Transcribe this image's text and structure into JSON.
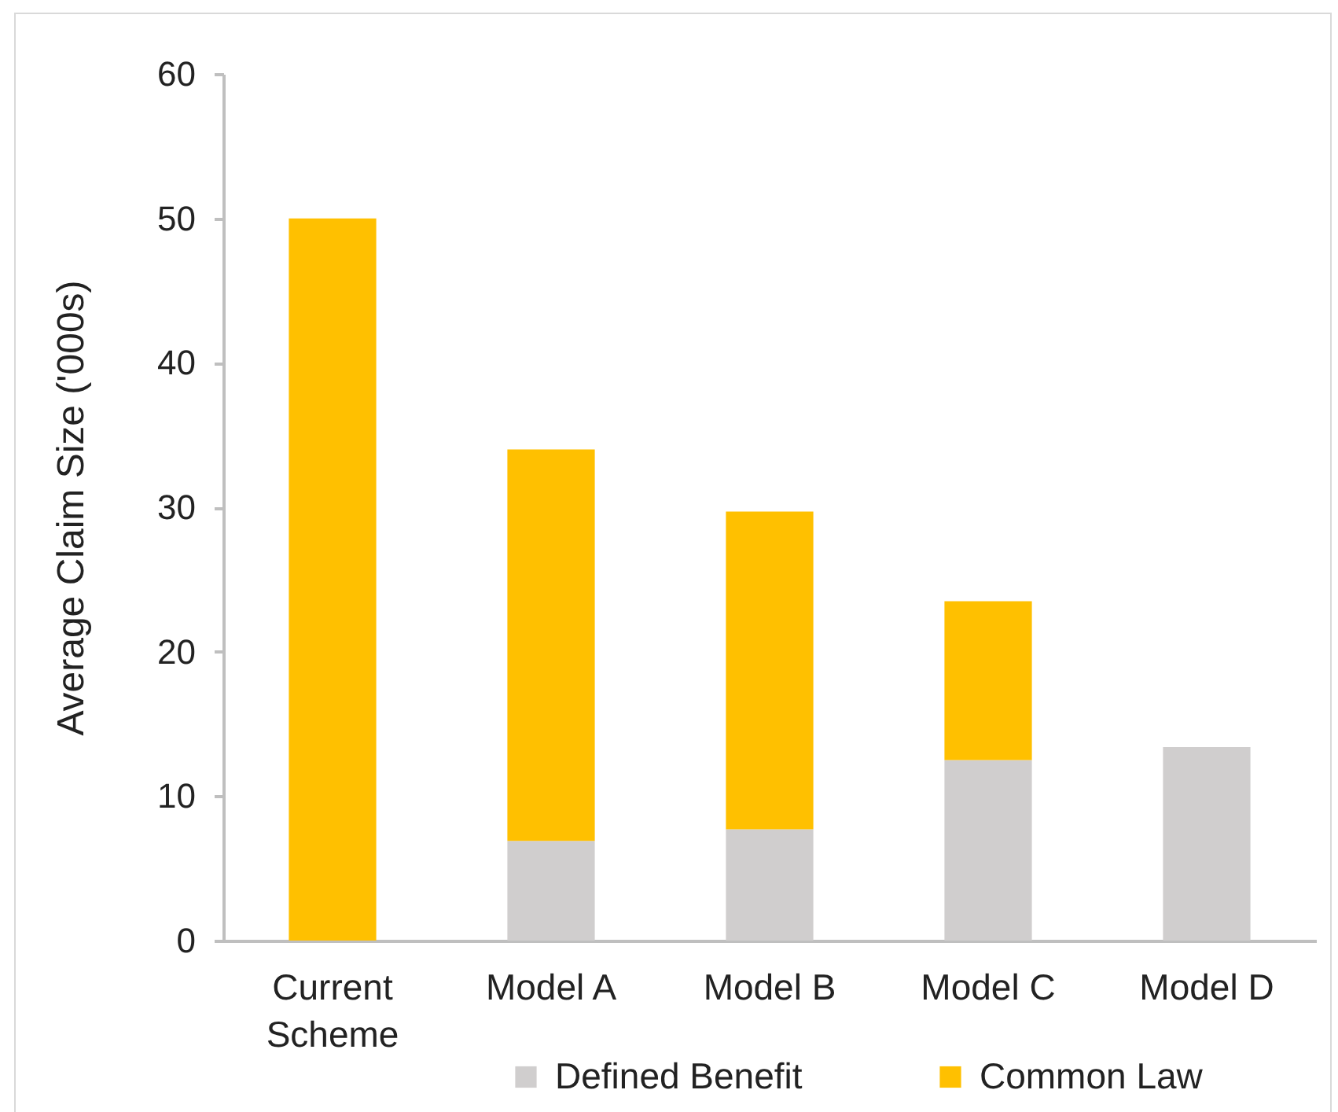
{
  "chart_data": {
    "type": "bar",
    "ylabel": "Average Claim Size ('000s)",
    "categories": [
      "Current Scheme",
      "Model A",
      "Model B",
      "Model C",
      "Model D"
    ],
    "series": [
      {
        "name": "Defined Benefit",
        "color": "#d0cece",
        "values": [
          null,
          6.9,
          7.7,
          12.5,
          13.4
        ]
      },
      {
        "name": "Common Law",
        "color": "#ffc000",
        "values": [
          50,
          27.1,
          22.0,
          11.0,
          null
        ]
      }
    ],
    "stacked": true,
    "ylim": [
      0,
      60
    ],
    "yticks": [
      0,
      10,
      20,
      30,
      40,
      50,
      60
    ],
    "legend": "bottom"
  }
}
